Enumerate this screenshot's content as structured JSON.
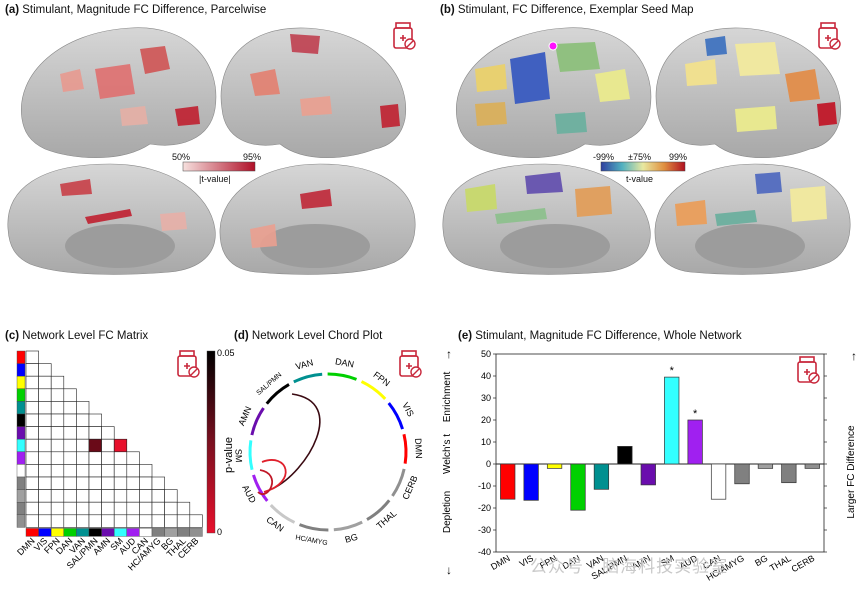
{
  "panel_a": {
    "letter": "(a)",
    "title": "Stimulant, Magnitude FC Difference, Parcelwise",
    "colorbar": {
      "min_label": "50%",
      "max_label": "95%",
      "caption": "|t-value|"
    }
  },
  "panel_b": {
    "letter": "(b)",
    "title": "Stimulant, FC Difference, Exemplar Seed Map",
    "colorbar": {
      "min_label": "-99%",
      "mid_label": "±75%",
      "max_label": "99%",
      "caption": "t-value"
    }
  },
  "panel_c": {
    "letter": "(c)",
    "title": "Network Level FC Matrix",
    "colorbar": {
      "top_label": "0.05",
      "bottom_label": "0",
      "caption": "p-value"
    },
    "networks": [
      "DMN",
      "VIS",
      "FPN",
      "DAN",
      "VAN",
      "SAL/PMN",
      "AMN",
      "SM",
      "AUD",
      "CAN",
      "HC/AMYG",
      "BG",
      "THAL",
      "CERB"
    ],
    "significant_cells": [
      {
        "row": "SM",
        "col": "SAL/PMN",
        "p": 0.03
      },
      {
        "row": "SM",
        "col": "SM",
        "p": 0.005
      }
    ]
  },
  "panel_d": {
    "letter": "(d)",
    "title": "Network Level Chord Plot",
    "arc_labels": [
      "VAN",
      "DAN",
      "FPN",
      "VIS",
      "DMN",
      "CERB",
      "THAL",
      "BG",
      "HC/AMYG",
      "CAN",
      "AUD",
      "SM",
      "AMN",
      "SAL/PMN"
    ]
  },
  "panel_e": {
    "letter": "(e)",
    "title": "Stimulant, Magnitude FC Difference, Whole Network",
    "ylabel": "Welch's t",
    "enrichment_label": "Enrichment",
    "depletion_label": "Depletion",
    "right_label": "Larger FC Difference",
    "star": "*"
  },
  "colors": {
    "DMN": "#ff0000",
    "VIS": "#0000ff",
    "FPN": "#ffff00",
    "DAN": "#00d000",
    "VAN": "#009090",
    "SAL/PMN": "#000000",
    "AMN": "#6a0dad",
    "SM": "#33ffff",
    "AUD": "#a020f0",
    "CAN": "#ffffff",
    "HC/AMYG": "#808080",
    "BG": "#a0a0a0",
    "THAL": "#808080",
    "CERB": "#909090",
    "badge": "#c8283c"
  },
  "icons": [
    "medication-bottle-icon"
  ],
  "watermark": "公众号 · 脑海科技实验室",
  "chart_data": {
    "type": "bar",
    "title": "Stimulant, Magnitude FC Difference, Whole Network",
    "xlabel": "",
    "ylabel": "Welch's t",
    "categories": [
      "DMN",
      "VIS",
      "FPN",
      "DAN",
      "VAN",
      "SAL/PMN",
      "AMN",
      "SM",
      "AUD",
      "CAN",
      "HC/AMYG",
      "BG",
      "THAL",
      "CERB"
    ],
    "values": [
      -16,
      -16.5,
      -2,
      -21,
      -11.5,
      8,
      -9.5,
      39.5,
      20,
      -16,
      -9,
      -2,
      -8.5,
      -2
    ],
    "significant": [
      "SM",
      "AUD"
    ],
    "ylim": [
      -40,
      50
    ],
    "yticks": [
      -40,
      -30,
      -20,
      -10,
      0,
      10,
      20,
      30,
      40,
      50
    ],
    "grid": false
  }
}
